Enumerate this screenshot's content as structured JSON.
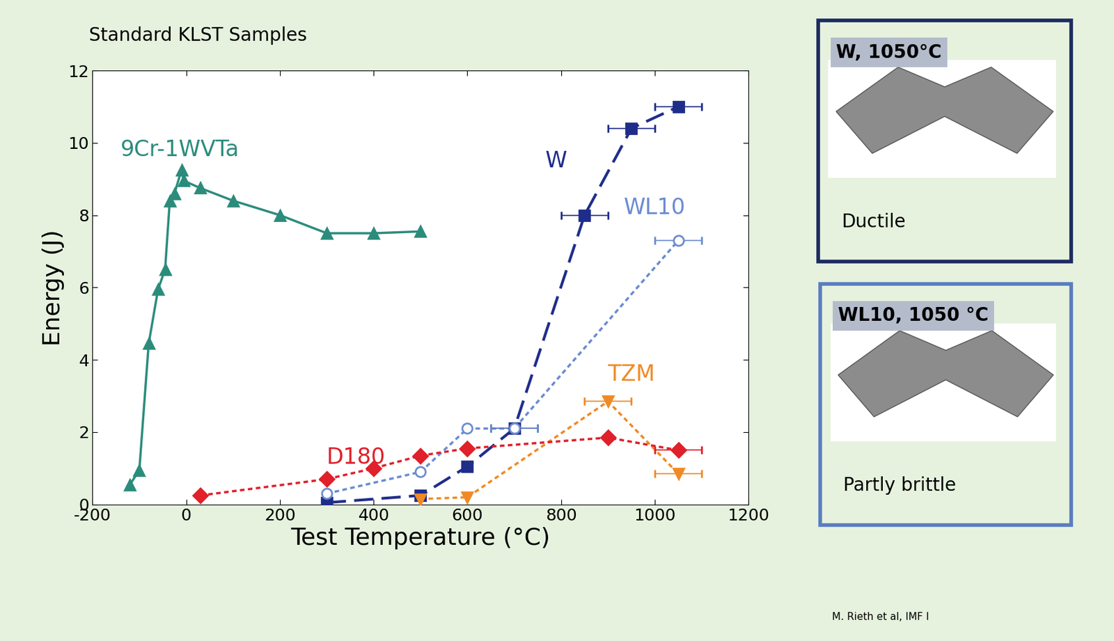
{
  "chart_data": {
    "type": "scatter",
    "title": "Standard KLST Samples",
    "x_label": "Test Temperature (°C)",
    "y_label": "Energy (J)",
    "xlim": [
      -200,
      1200
    ],
    "xticks": [
      -200,
      0,
      200,
      400,
      600,
      800,
      1000,
      1200
    ],
    "ylim": [
      0,
      12
    ],
    "yticks": [
      0,
      2,
      4,
      6,
      8,
      10,
      12
    ],
    "grid": false,
    "series": [
      {
        "name": "9Cr-1WVTa",
        "color": "#2b8c7c",
        "marker": "triangle_up",
        "line_style": "solid",
        "x": [
          -120,
          -100,
          -80,
          -60,
          -45,
          -35,
          -25,
          -10,
          -5,
          30,
          100,
          200,
          300,
          400,
          500
        ],
        "values": [
          0.55,
          0.95,
          4.45,
          5.95,
          6.5,
          8.4,
          8.6,
          9.25,
          8.95,
          8.75,
          8.4,
          8.0,
          7.5,
          7.5,
          7.55
        ],
        "xerr": [
          0,
          0,
          0,
          0,
          0,
          0,
          0,
          0,
          0,
          0,
          0,
          0,
          0,
          0,
          0
        ]
      },
      {
        "name": "W",
        "color": "#1f2d8a",
        "marker": "square",
        "line_style": "dashed",
        "x": [
          300,
          500,
          600,
          700,
          850,
          950,
          1050
        ],
        "values": [
          0.05,
          0.25,
          1.05,
          2.1,
          8.0,
          10.4,
          11.0
        ],
        "xerr": [
          0,
          0,
          0,
          50,
          50,
          50,
          50
        ]
      },
      {
        "name": "WL10",
        "color": "#6a8cd0",
        "marker": "circle_open",
        "line_style": "dotted",
        "x": [
          300,
          500,
          600,
          700,
          1050
        ],
        "values": [
          0.3,
          0.9,
          2.1,
          2.1,
          7.3
        ],
        "xerr": [
          0,
          0,
          0,
          50,
          50
        ]
      },
      {
        "name": "TZM",
        "color": "#f08a24",
        "marker": "triangle_down",
        "line_style": "dotted",
        "x": [
          500,
          600,
          900,
          1050
        ],
        "values": [
          0.15,
          0.2,
          2.85,
          0.85
        ],
        "xerr": [
          0,
          0,
          50,
          50
        ]
      },
      {
        "name": "D180",
        "color": "#e0202a",
        "marker": "diamond",
        "line_style": "dotted",
        "x": [
          30,
          300,
          400,
          500,
          600,
          900,
          1050
        ],
        "values": [
          0.25,
          0.7,
          1.0,
          1.35,
          1.55,
          1.85,
          1.5
        ],
        "xerr": [
          0,
          0,
          0,
          0,
          0,
          0,
          50
        ]
      }
    ]
  },
  "panels": [
    {
      "title": "W, 1050°C",
      "caption": "Ductile",
      "color": "#1c2a60"
    },
    {
      "title": "WL10, 1050 °C",
      "caption": "Partly brittle",
      "color": "#5a7cc0"
    }
  ],
  "source": "M. Rieth et al, IMF I"
}
